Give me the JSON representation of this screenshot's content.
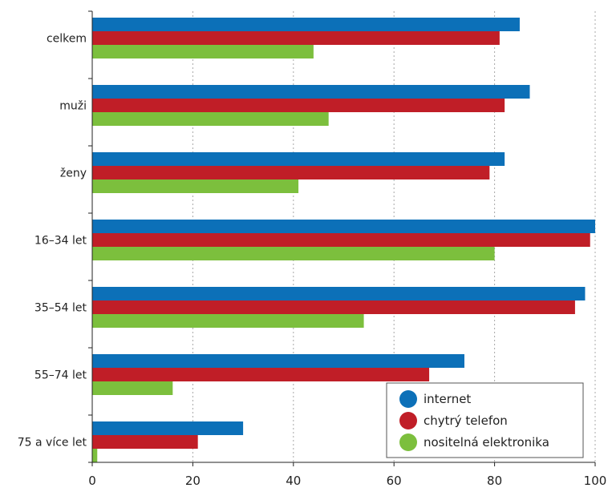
{
  "chart_data": {
    "type": "bar",
    "orientation": "horizontal",
    "categories": [
      "celkem",
      "muži",
      "ženy",
      "16–34 let",
      "35–54 let",
      "55–74 let",
      "75 a více let"
    ],
    "series": [
      {
        "name": "internet",
        "color": "#0c70b8",
        "values": [
          85,
          87,
          82,
          100,
          98,
          74,
          30
        ]
      },
      {
        "name": "chytrý telefon",
        "color": "#c01e27",
        "values": [
          81,
          82,
          79,
          99,
          96,
          67,
          21
        ]
      },
      {
        "name": "nositelná elektronika",
        "color": "#7cbf3d",
        "values": [
          44,
          47,
          41,
          80,
          54,
          16,
          1
        ]
      }
    ],
    "xlim": [
      0,
      100
    ],
    "xticks": [
      0,
      20,
      40,
      60,
      80,
      100
    ],
    "grid": true,
    "legend_position": "bottom-right",
    "title": "",
    "xlabel": "",
    "ylabel": ""
  }
}
